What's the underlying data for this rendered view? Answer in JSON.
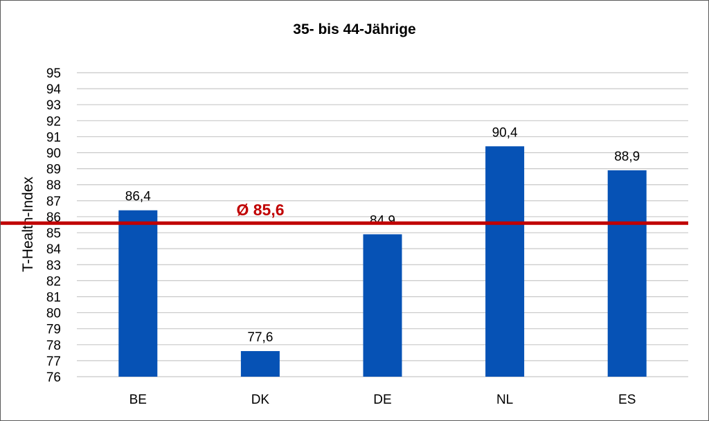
{
  "chart_data": {
    "type": "bar",
    "title": "35- bis 44-Jährige",
    "xlabel": "",
    "ylabel": "T-Health-Index",
    "categories": [
      "BE",
      "DK",
      "DE",
      "NL",
      "ES"
    ],
    "values": [
      86.4,
      77.6,
      84.9,
      90.4,
      88.9
    ],
    "data_labels": [
      "86,4",
      "77,6",
      "84.9",
      "90,4",
      "88,9"
    ],
    "ylim": [
      76,
      95
    ],
    "yticks": [
      95,
      94,
      93,
      92,
      91,
      90,
      89,
      88,
      87,
      86,
      85,
      84,
      83,
      82,
      81,
      80,
      79,
      78,
      77,
      76
    ],
    "grid": true,
    "bar_color": "#0652B5",
    "average": {
      "value": 85.6,
      "label": "Ø 85,6",
      "color": "#C00000"
    }
  }
}
